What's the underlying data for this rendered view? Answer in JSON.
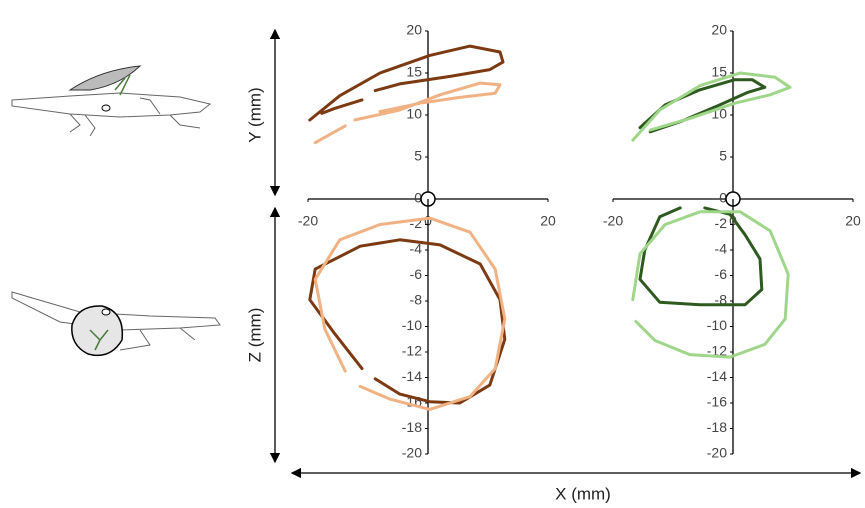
{
  "axis_labels": {
    "y": "Y (mm)",
    "z": "Z (mm)",
    "x": "X (mm)"
  },
  "chart_data": [
    {
      "type": "line",
      "xlim": [
        -20,
        20
      ],
      "ylim": [
        0,
        20
      ],
      "xticks": [
        -20,
        0,
        20
      ],
      "yticks": [
        0,
        5,
        10,
        15,
        20
      ],
      "series": [
        {
          "color": "#7b3a12",
          "x": [
            -19.7,
            -14.7,
            -8,
            0.3,
            7,
            12,
            12.5,
            10.3,
            3.7,
            -4.7,
            -8.8,
            null,
            -11,
            -15.5,
            -17.7
          ],
          "values": [
            9.4,
            12.3,
            15,
            17.1,
            18.2,
            17.5,
            16.3,
            15.4,
            14.6,
            13.7,
            12.9,
            null,
            11.8,
            10.8,
            10.2
          ]
        },
        {
          "color": "#f0b283",
          "x": [
            -18.8,
            -13.8,
            null,
            -12.2,
            -4.7,
            2,
            8.7,
            12,
            11.2,
            5.3,
            -1.3,
            -8
          ],
          "values": [
            6.7,
            8.7,
            null,
            9.4,
            10.6,
            12.4,
            13.8,
            13.6,
            12.6,
            12.1,
            11.4,
            10.4
          ]
        }
      ]
    },
    {
      "type": "line",
      "xlim": [
        -20,
        20
      ],
      "ylim": [
        -20,
        0
      ],
      "yticks": [
        -2,
        -4,
        -6,
        -8,
        -10,
        -12,
        -14,
        -16,
        -18,
        -20
      ],
      "series": [
        {
          "color": "#7b3a12",
          "x": [
            -11,
            -15.5,
            -19.7,
            -18.8,
            -11.3,
            -4.7,
            2,
            8.7,
            12,
            12.8,
            10.3,
            5.3,
            0.3,
            -4.7,
            -8.8
          ],
          "values": [
            -13.3,
            -10.6,
            -7.9,
            -5.5,
            -3.7,
            -3.2,
            -3.6,
            -5.1,
            -7.9,
            -11,
            -14.6,
            -16,
            -15.9,
            -15.3,
            -14.1
          ]
        },
        {
          "color": "#f0b283",
          "x": [
            -13.8,
            -17.2,
            -18.8,
            -14.7,
            -8,
            0.3,
            7,
            11.2,
            12.8,
            11.2,
            7,
            0.3,
            -6.3,
            -11.3
          ],
          "values": [
            -13.5,
            -10.2,
            -6.3,
            -3.2,
            -2,
            -1.5,
            -2.6,
            -5.5,
            -9.4,
            -13.3,
            -15.5,
            -16.5,
            -15.7,
            -14.7
          ]
        }
      ]
    },
    {
      "type": "line",
      "xlim": [
        -20,
        20
      ],
      "ylim": [
        0,
        20
      ],
      "xticks": [
        -20,
        0,
        20
      ],
      "yticks": [
        0,
        5,
        10,
        15,
        20
      ],
      "series": [
        {
          "color": "#2e5a1f",
          "x": [
            -15.5,
            -11.3,
            -5.5,
            0.3,
            3.2,
            5.3,
            2.5,
            -2.2,
            -8.8,
            -13.8
          ],
          "values": [
            8.5,
            11.2,
            13,
            14.2,
            14.2,
            13.3,
            12.7,
            11.2,
            9.2,
            8
          ]
        },
        {
          "color": "#9fd68a",
          "x": [
            -16.7,
            -12.2,
            -5.5,
            1.2,
            7,
            9.5,
            6.2,
            0.3,
            -7.2,
            -13.8
          ],
          "values": [
            7,
            10.6,
            13.5,
            15,
            14.5,
            13.3,
            12.4,
            11.4,
            9.6,
            8.2
          ]
        }
      ]
    },
    {
      "type": "line",
      "xlim": [
        -20,
        20
      ],
      "ylim": [
        -20,
        0
      ],
      "yticks": [
        -2,
        -4,
        -6,
        -8,
        -10,
        -12,
        -14,
        -16,
        -18,
        -20
      ],
      "series": [
        {
          "color": "#2e5a1f",
          "x": [
            -8.8,
            -12.2,
            -14.7,
            -15.5,
            -12.2,
            -5.5,
            2,
            4.8,
            4.5,
            2,
            -0.5,
            -4.7
          ],
          "values": [
            -0.7,
            -1.4,
            -4,
            -6.3,
            -8.1,
            -8.3,
            -8.3,
            -7.1,
            -4.7,
            -2.8,
            -1.2,
            -0.7
          ]
        },
        {
          "color": "#9fd68a",
          "x": [
            -16.7,
            -15.5,
            -11.3,
            -5.5,
            1.2,
            6.2,
            9.2,
            8.7,
            5.3,
            -0.5,
            -7.2,
            -13,
            -16.2
          ],
          "values": [
            -7.9,
            -4.3,
            -2,
            -1,
            -1,
            -2.5,
            -5.9,
            -9.4,
            -11.4,
            -12.4,
            -12.2,
            -11.1,
            -9.6
          ]
        }
      ]
    }
  ]
}
